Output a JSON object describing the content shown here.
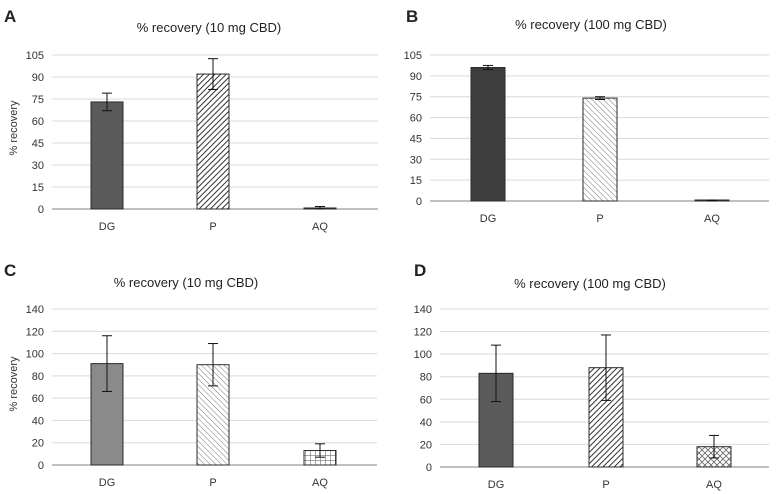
{
  "chart_data": [
    {
      "panel": "A",
      "type": "bar",
      "title": "% recovery (10 mg CBD)",
      "ylabel": "% recovery",
      "categories": [
        "DG",
        "P",
        "AQ"
      ],
      "values": [
        73,
        92,
        0.7
      ],
      "errors": [
        6,
        10.5,
        1
      ],
      "ylim": [
        0,
        105
      ],
      "yticks": [
        0,
        15,
        30,
        45,
        60,
        75,
        90,
        105
      ],
      "grid": true,
      "fills": [
        "#5a5a5a",
        "hatch-dense",
        "#5a5a5a"
      ]
    },
    {
      "panel": "B",
      "type": "bar",
      "title": "% recovery (100 mg CBD)",
      "ylabel": "",
      "categories": [
        "DG",
        "P",
        "AQ"
      ],
      "values": [
        96,
        74,
        0.4
      ],
      "errors": [
        1.5,
        1,
        0.3
      ],
      "ylim": [
        0,
        105
      ],
      "yticks": [
        0,
        15,
        30,
        45,
        60,
        75,
        90,
        105
      ],
      "grid": true,
      "fills": [
        "#3d3d3d",
        "hatch-light",
        "#3d3d3d"
      ]
    },
    {
      "panel": "C",
      "type": "bar",
      "title": "% recovery (10 mg CBD)",
      "ylabel": "% recovery",
      "categories": [
        "DG",
        "P",
        "AQ"
      ],
      "values": [
        91,
        90,
        13
      ],
      "errors": [
        25,
        19,
        6
      ],
      "ylim": [
        0,
        140
      ],
      "yticks": [
        0,
        20,
        40,
        60,
        80,
        100,
        120,
        140
      ],
      "grid": true,
      "fills": [
        "#8a8a8a",
        "hatch-light",
        "grid-pattern"
      ]
    },
    {
      "panel": "D",
      "type": "bar",
      "title": "% recovery (100 mg CBD)",
      "ylabel": "",
      "categories": [
        "DG",
        "P",
        "AQ"
      ],
      "values": [
        83,
        88,
        18
      ],
      "errors": [
        25,
        29,
        10
      ],
      "ylim": [
        0,
        140
      ],
      "yticks": [
        0,
        20,
        40,
        60,
        80,
        100,
        120,
        140
      ],
      "grid": true,
      "fills": [
        "#5a5a5a",
        "hatch-dense",
        "hatch-cross"
      ]
    }
  ]
}
